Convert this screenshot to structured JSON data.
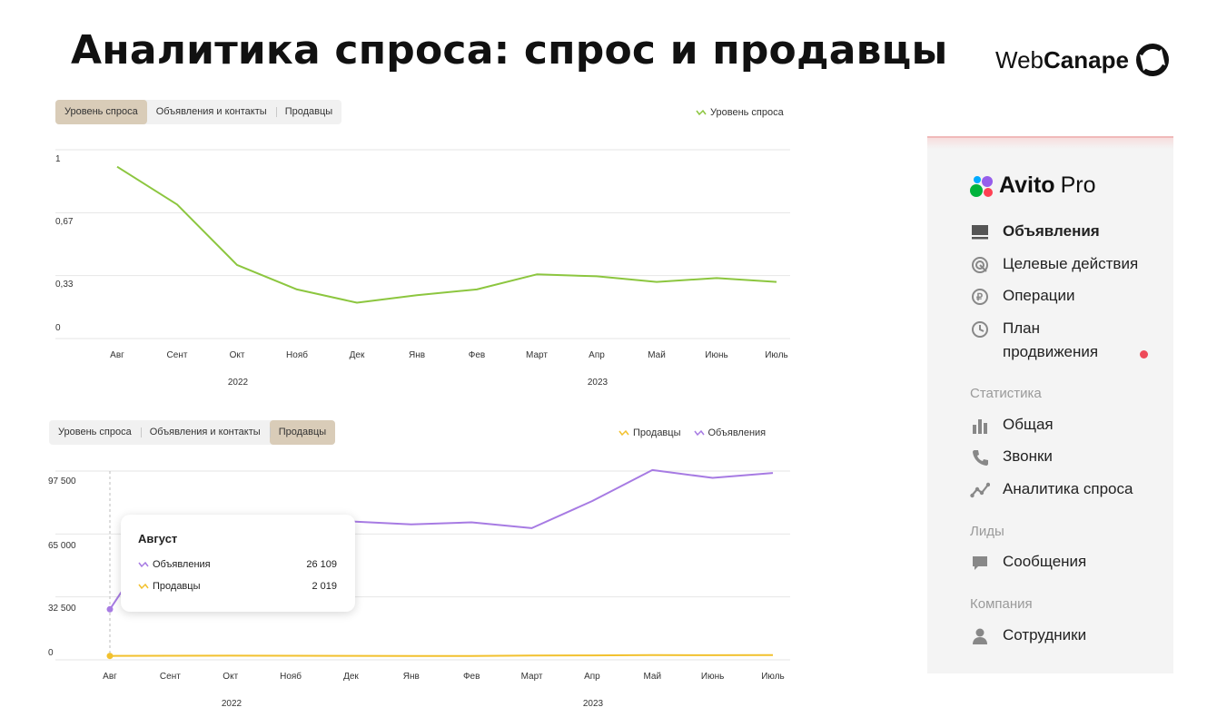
{
  "slide": {
    "title": "Аналитика спроса: спрос и продавцы"
  },
  "brand": {
    "part1": "Web",
    "part2": "Canape"
  },
  "chart1": {
    "tabs": [
      "Уровень спроса",
      "Объявления и контакты",
      "Продавцы"
    ],
    "active_tab": 0,
    "legend": [
      "Уровень спроса"
    ]
  },
  "chart2": {
    "tabs": [
      "Уровень спроса",
      "Объявления и контакты",
      "Продавцы"
    ],
    "active_tab": 2,
    "legend": [
      "Продавцы",
      "Объявления"
    ]
  },
  "tooltip": {
    "title": "Август",
    "rows": [
      {
        "label": "Объявления",
        "value": "26 109"
      },
      {
        "label": "Продавцы",
        "value": "2 019"
      }
    ]
  },
  "chart_data": [
    {
      "type": "line",
      "categories": [
        "Авг",
        "Сент",
        "Окт",
        "Нояб",
        "Дек",
        "Янв",
        "Фев",
        "Март",
        "Апр",
        "Май",
        "Июнь",
        "Июль"
      ],
      "year_labels": [
        "2022",
        "2023"
      ],
      "y_ticks": [
        "1",
        "0,67",
        "0,33",
        "0"
      ],
      "ylim": [
        0,
        1
      ],
      "grid": true,
      "legend_position": "top-right",
      "series": [
        {
          "name": "Уровень спроса",
          "color": "#8cc63f",
          "values": [
            0.91,
            0.71,
            0.39,
            0.26,
            0.19,
            0.23,
            0.26,
            0.34,
            0.33,
            0.3,
            0.32,
            0.3
          ]
        }
      ]
    },
    {
      "type": "line",
      "categories": [
        "Авг",
        "Сент",
        "Окт",
        "Нояб",
        "Дек",
        "Янв",
        "Фев",
        "Март",
        "Апр",
        "Май",
        "Июнь",
        "Июль"
      ],
      "year_labels": [
        "2022",
        "2023"
      ],
      "y_ticks": [
        "97 500",
        "65 000",
        "32 500",
        "0"
      ],
      "ylim": [
        0,
        97500
      ],
      "grid": true,
      "legend_position": "top-right",
      "series": [
        {
          "name": "Продавцы",
          "color": "#f2c12e",
          "values": [
            2019,
            2100,
            2150,
            2100,
            2050,
            1950,
            2000,
            2200,
            2300,
            2500,
            2400,
            2450
          ]
        },
        {
          "name": "Объявления",
          "color": "#a77be3",
          "values": [
            26109,
            73000,
            72500,
            70500,
            71500,
            70000,
            71000,
            68000,
            82000,
            98000,
            94000,
            96500
          ]
        }
      ]
    }
  ],
  "sidebar": {
    "logo": {
      "bold": "Avito",
      "light": "Pro"
    },
    "items": [
      {
        "label": "Объявления",
        "icon": "monitor-icon"
      },
      {
        "label": "Целевые действия",
        "icon": "target-icon"
      },
      {
        "label": "Операции",
        "icon": "ruble-icon"
      },
      {
        "label": "План",
        "label2": "продвижения",
        "icon": "clock-icon"
      }
    ],
    "section_stats": "Статистика",
    "stats_items": [
      {
        "label": "Общая",
        "icon": "bar-chart-icon"
      },
      {
        "label": "Звонки",
        "icon": "phone-icon"
      },
      {
        "label": "Аналитика спроса",
        "icon": "trend-icon"
      }
    ],
    "section_leads": "Лиды",
    "leads_items": [
      {
        "label": "Сообщения",
        "icon": "chat-icon"
      }
    ],
    "section_company": "Компания",
    "company_items": [
      {
        "label": "Сотрудники",
        "icon": "user-icon"
      }
    ]
  }
}
